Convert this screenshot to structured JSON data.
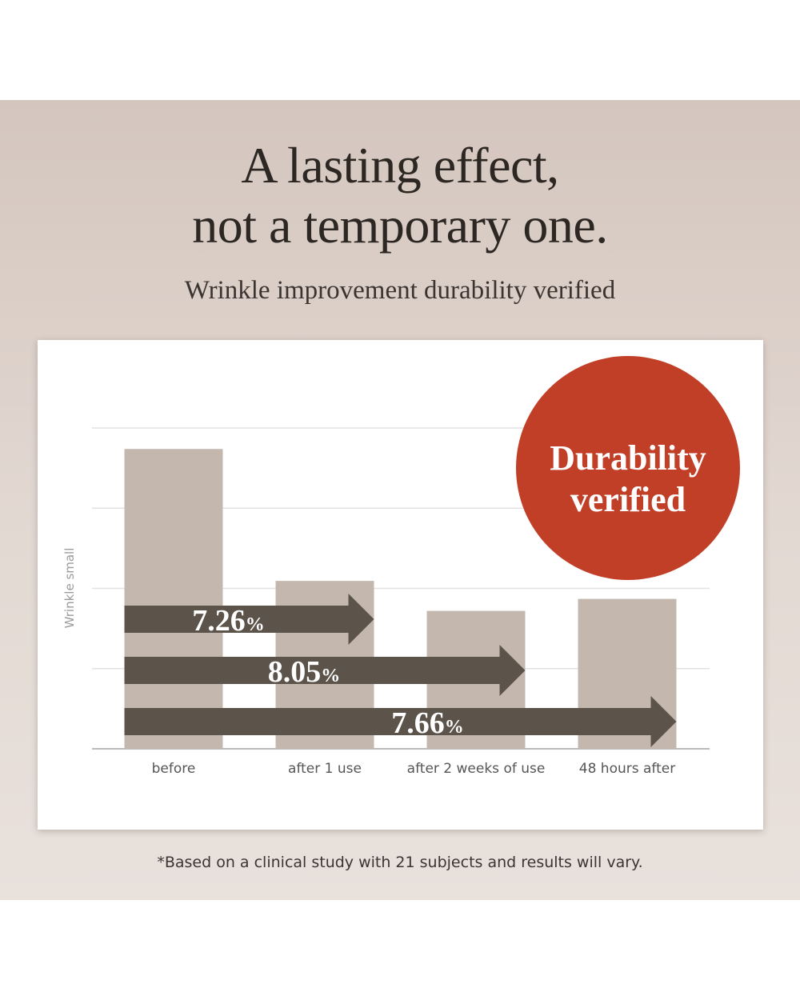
{
  "headline": {
    "line1": "A lasting effect,",
    "line2": "not a temporary one."
  },
  "subtitle": "Wrinkle improvement durability verified",
  "badge": {
    "line1": "Durability",
    "line2": "verified",
    "color": "#c23f27"
  },
  "footnote": "*Based on a clinical study with 21 subjects and results will vary.",
  "colors": {
    "bar": "#c4b8ae",
    "arrow": "#5c534b",
    "gridline": "#e2e2e2",
    "axis": "#bbbbbb"
  },
  "chart_data": {
    "type": "bar",
    "categories": [
      "before",
      "after 1 use",
      "after 2 weeks of use",
      "48 hours after"
    ],
    "values": [
      100,
      56,
      46,
      50
    ],
    "ylabel": "Wrinkle small",
    "ylim": [
      0,
      107
    ],
    "grid": true,
    "arrows": [
      {
        "value": "7.26",
        "unit": "%",
        "from": "before",
        "to": "after 1 use"
      },
      {
        "value": "8.05",
        "unit": "%",
        "from": "before",
        "to": "after 2 weeks of use"
      },
      {
        "value": "7.66",
        "unit": "%",
        "from": "before",
        "to": "48 hours after"
      }
    ]
  }
}
